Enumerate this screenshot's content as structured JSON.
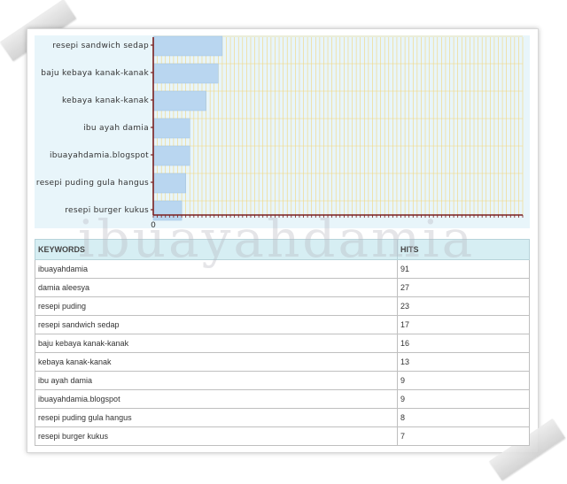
{
  "watermark": "ibuayahdamia",
  "chart_data": {
    "type": "bar",
    "orientation": "horizontal",
    "categories": [
      "resepi sandwich sedap",
      "baju kebaya kanak-kanak",
      "kebaya kanak-kanak",
      "ibu ayah damia",
      "ibuayahdamia.blogspot",
      "resepi puding gula hangus",
      "resepi burger kukus"
    ],
    "values": [
      17,
      16,
      13,
      9,
      9,
      8,
      7
    ],
    "x_ticks": [
      "0"
    ],
    "xlim": [
      0,
      91
    ],
    "grid": true,
    "colors": {
      "bar": "#b9d6f0",
      "bar_border": "#9fc2e4",
      "grid": "#f2d67c",
      "axis": "#7a1f1f"
    }
  },
  "table": {
    "headers": {
      "keyword": "KEYWORDS",
      "hits": "HITS"
    },
    "rows": [
      {
        "keyword": "ibuayahdamia",
        "hits": "91"
      },
      {
        "keyword": "damia aleesya",
        "hits": "27"
      },
      {
        "keyword": "resepi puding",
        "hits": "23"
      },
      {
        "keyword": "resepi sandwich sedap",
        "hits": "17"
      },
      {
        "keyword": "baju kebaya kanak-kanak",
        "hits": "16"
      },
      {
        "keyword": "kebaya kanak-kanak",
        "hits": "13"
      },
      {
        "keyword": "ibu ayah damia",
        "hits": "9"
      },
      {
        "keyword": "ibuayahdamia.blogspot",
        "hits": "9"
      },
      {
        "keyword": "resepi puding gula hangus",
        "hits": "8"
      },
      {
        "keyword": "resepi burger kukus",
        "hits": "7"
      }
    ]
  }
}
